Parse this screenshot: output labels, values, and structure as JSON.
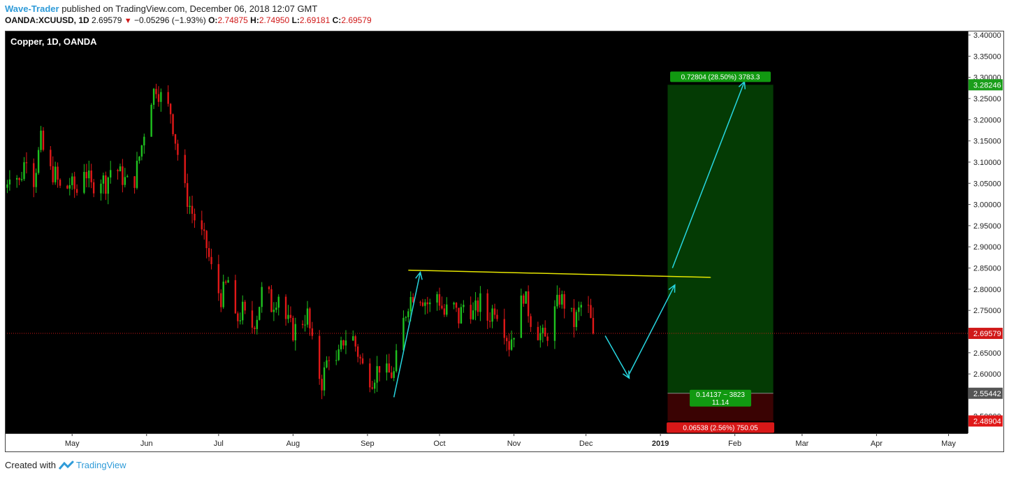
{
  "header": {
    "author": "Wave-Trader",
    "published": "published on TradingView.com, December 06, 2018 12:07 GMT",
    "symbol": "OANDA:XCUUSD, 1D",
    "last": "2.69579",
    "change": "−0.05296 (−1.93%)",
    "o_label": "O:",
    "o": "2.74875",
    "h_label": "H:",
    "h": "2.74950",
    "l_label": "L:",
    "l": "2.69181",
    "c_label": "C:",
    "c": "2.69579"
  },
  "footer": {
    "created": "Created with",
    "brand": "TradingView"
  },
  "colors": {
    "background": "#000000",
    "up": "#1fc21f",
    "down": "#e01818",
    "target_zone": "#043b04",
    "stop_zone": "#3a0303",
    "trendline": "#e6e600",
    "arrow": "#27d6e0",
    "price_line": "#d01919"
  },
  "chart_data": {
    "type": "candlestick",
    "title": "Copper, 1D, OANDA",
    "y_ticks": [
      "3.40000",
      "3.35000",
      "3.30000",
      "3.25000",
      "3.20000",
      "3.15000",
      "3.10000",
      "3.05000",
      "3.00000",
      "2.95000",
      "2.90000",
      "2.85000",
      "2.80000",
      "2.75000",
      "2.70000",
      "2.65000",
      "2.60000",
      "2.55000",
      "2.50000"
    ],
    "ylim": [
      2.46,
      3.41
    ],
    "x_labels": [
      {
        "label": "May",
        "day": 30
      },
      {
        "label": "Jun",
        "day": 61
      },
      {
        "label": "Jul",
        "day": 91
      },
      {
        "label": "Aug",
        "day": 122
      },
      {
        "label": "Sep",
        "day": 153
      },
      {
        "label": "Oct",
        "day": 183
      },
      {
        "label": "Nov",
        "day": 214
      },
      {
        "label": "Dec",
        "day": 244
      },
      {
        "label": "2019",
        "day": 275
      },
      {
        "label": "Feb",
        "day": 306
      },
      {
        "label": "Mar",
        "day": 334
      },
      {
        "label": "Apr",
        "day": 365
      },
      {
        "label": "May",
        "day": 395
      }
    ],
    "x_axis_note": "day index counted from Apr 1, 2018",
    "x_range": [
      2,
      403
    ],
    "highlighted_x_label": "2019",
    "price_labels": [
      {
        "value": 3.28246,
        "text": "3.28246",
        "color": "#1a9e1a"
      },
      {
        "value": 2.69579,
        "text": "2.69579",
        "color": "#d01919"
      },
      {
        "value": 2.55442,
        "text": "2.55442",
        "color": "#555555"
      },
      {
        "value": 2.48904,
        "text": "2.48904",
        "color": "#e01818"
      }
    ],
    "current_price": 2.69579,
    "candle_path": [
      [
        2,
        3.04
      ],
      [
        5,
        3.1
      ],
      [
        8,
        3.05
      ],
      [
        11,
        3.12
      ],
      [
        14,
        3.06
      ],
      [
        17,
        3.15
      ],
      [
        20,
        3.08
      ],
      [
        23,
        3.07
      ],
      [
        26,
        3.02
      ],
      [
        29,
        3.05
      ],
      [
        32,
        3.03
      ],
      [
        35,
        3.09
      ],
      [
        38,
        3.04
      ],
      [
        41,
        3.07
      ],
      [
        44,
        3.05
      ],
      [
        47,
        3.1
      ],
      [
        50,
        3.07
      ],
      [
        53,
        3.05
      ],
      [
        56,
        3.06
      ],
      [
        59,
        3.14
      ],
      [
        62,
        3.24
      ],
      [
        65,
        3.28
      ],
      [
        68,
        3.24
      ],
      [
        71,
        3.22
      ],
      [
        74,
        3.12
      ],
      [
        77,
        3.03
      ],
      [
        80,
        2.98
      ],
      [
        83,
        2.94
      ],
      [
        86,
        2.9
      ],
      [
        89,
        2.82
      ],
      [
        92,
        2.78
      ],
      [
        95,
        2.82
      ],
      [
        98,
        2.72
      ],
      [
        101,
        2.75
      ],
      [
        104,
        2.7
      ],
      [
        107,
        2.74
      ],
      [
        110,
        2.82
      ],
      [
        113,
        2.76
      ],
      [
        116,
        2.79
      ],
      [
        119,
        2.73
      ],
      [
        122,
        2.7
      ],
      [
        125,
        2.72
      ],
      [
        128,
        2.74
      ],
      [
        131,
        2.63
      ],
      [
        134,
        2.58
      ],
      [
        137,
        2.65
      ],
      [
        140,
        2.62
      ],
      [
        143,
        2.68
      ],
      [
        146,
        2.7
      ],
      [
        149,
        2.65
      ],
      [
        152,
        2.6
      ],
      [
        155,
        2.59
      ],
      [
        158,
        2.62
      ],
      [
        161,
        2.6
      ],
      [
        164,
        2.6
      ],
      [
        167,
        2.7
      ],
      [
        170,
        2.77
      ],
      [
        173,
        2.8
      ],
      [
        176,
        2.78
      ],
      [
        179,
        2.76
      ],
      [
        182,
        2.79
      ],
      [
        185,
        2.74
      ],
      [
        188,
        2.77
      ],
      [
        191,
        2.73
      ],
      [
        194,
        2.78
      ],
      [
        197,
        2.74
      ],
      [
        200,
        2.77
      ],
      [
        203,
        2.73
      ],
      [
        206,
        2.76
      ],
      [
        209,
        2.73
      ],
      [
        212,
        2.67
      ],
      [
        215,
        2.72
      ],
      [
        218,
        2.79
      ],
      [
        221,
        2.73
      ],
      [
        224,
        2.7
      ],
      [
        227,
        2.68
      ],
      [
        230,
        2.73
      ],
      [
        233,
        2.78
      ],
      [
        236,
        2.76
      ],
      [
        239,
        2.72
      ],
      [
        242,
        2.76
      ],
      [
        245,
        2.75
      ],
      [
        247,
        2.69579
      ]
    ],
    "position": {
      "type": "long",
      "entry": 2.55442,
      "target": 3.28246,
      "stop": 2.48904,
      "start_day": 278,
      "end_day": 322,
      "target_label": "0.72804 (28.50%) 3783.3",
      "mid_label_1": "0.14137 ~ 3823",
      "mid_label_2": "11.14",
      "stop_label": "0.06538 (2.56%) 750.05"
    },
    "trendline": [
      [
        170,
        2.845
      ],
      [
        296,
        2.828
      ]
    ],
    "arrows": [
      [
        [
          164,
          2.545
        ],
        [
          175,
          2.84
        ]
      ],
      [
        [
          252,
          2.69
        ],
        [
          262,
          2.59
        ]
      ],
      [
        [
          262,
          2.6
        ],
        [
          281,
          2.81
        ]
      ],
      [
        [
          280,
          2.85
        ],
        [
          310,
          3.29
        ]
      ]
    ]
  }
}
